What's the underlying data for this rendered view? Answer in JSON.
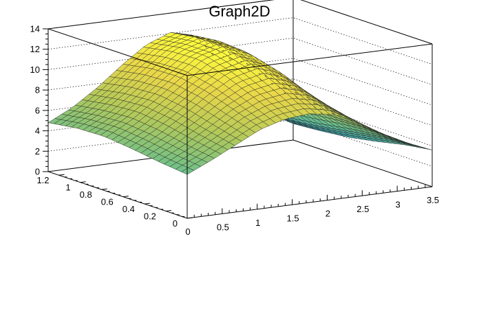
{
  "chart_data": {
    "type": "surface",
    "title": "Graph2D",
    "xlabel": "",
    "ylabel": "",
    "zlabel": "",
    "xlim": [
      0,
      3.5
    ],
    "ylim": [
      0,
      1.3
    ],
    "zlim": [
      0,
      14
    ],
    "x_ticks": [
      "0",
      "0.5",
      "1",
      "1.5",
      "2",
      "2.5",
      "3",
      "3.5"
    ],
    "y_ticks": [
      "0",
      "0.2",
      "0.4",
      "0.6",
      "0.8",
      "1",
      "1.2"
    ],
    "z_ticks": [
      "0",
      "2",
      "4",
      "6",
      "8",
      "10",
      "12",
      "14"
    ],
    "grid": "z-gridlines on back walls",
    "colormap": [
      "#35acc9",
      "#6dbf8a",
      "#b2c95a",
      "#e8d64a",
      "#ffff3c"
    ],
    "grid_x": [
      0,
      0.35,
      0.7,
      1.05,
      1.4,
      1.75,
      2.1,
      2.45,
      2.8,
      3.15,
      3.5
    ],
    "grid_y": [
      0,
      0.26,
      0.52,
      0.78,
      1.04,
      1.3
    ],
    "z": [
      [
        4.3,
        5.4,
        6.6,
        7.8,
        8.5,
        8.7,
        8.3,
        7.2,
        5.8,
        4.6,
        3.6
      ],
      [
        4.6,
        5.8,
        7.2,
        8.7,
        9.8,
        10.2,
        9.6,
        7.8,
        5.9,
        4.4,
        3.2
      ],
      [
        5.0,
        6.3,
        7.9,
        9.6,
        11.0,
        11.6,
        10.8,
        8.3,
        5.9,
        4.0,
        2.6
      ],
      [
        5.3,
        6.6,
        8.3,
        10.1,
        11.8,
        12.4,
        11.6,
        8.6,
        5.7,
        3.5,
        2.1
      ],
      [
        5.2,
        6.4,
        8.1,
        10.0,
        11.7,
        12.5,
        11.8,
        8.7,
        5.4,
        3.1,
        1.8
      ],
      [
        4.8,
        6.0,
        7.6,
        9.5,
        11.2,
        12.1,
        11.5,
        8.5,
        5.1,
        2.9,
        1.6
      ]
    ]
  }
}
